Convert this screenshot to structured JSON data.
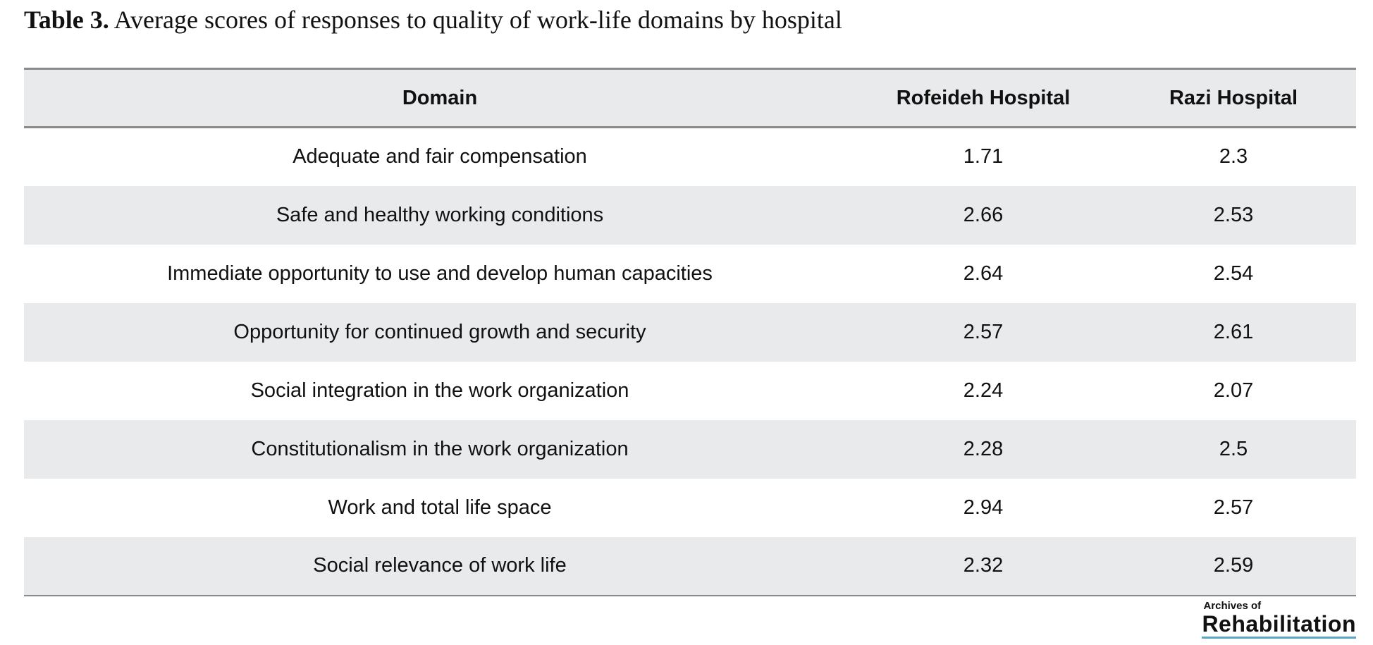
{
  "caption": {
    "label": "Table 3.",
    "text": " Average scores of responses to quality of work-life domains by hospital"
  },
  "table": {
    "headers": [
      "Domain",
      "Rofeideh Hospital",
      "Razi Hospital"
    ],
    "rows": [
      [
        "Adequate and fair compensation",
        "1.71",
        "2.3"
      ],
      [
        "Safe and healthy working conditions",
        "2.66",
        "2.53"
      ],
      [
        "Immediate opportunity to use and develop human capacities",
        "2.64",
        "2.54"
      ],
      [
        "Opportunity for continued growth and security",
        "2.57",
        "2.61"
      ],
      [
        "Social integration in the work organization",
        "2.24",
        "2.07"
      ],
      [
        "Constitutionalism in the work organization",
        "2.28",
        "2.5"
      ],
      [
        "Work and total life space",
        "2.94",
        "2.57"
      ],
      [
        "Social relevance of work life",
        "2.32",
        "2.59"
      ]
    ]
  },
  "logo": {
    "small": "Archives of",
    "big": "Rehabilitation"
  }
}
